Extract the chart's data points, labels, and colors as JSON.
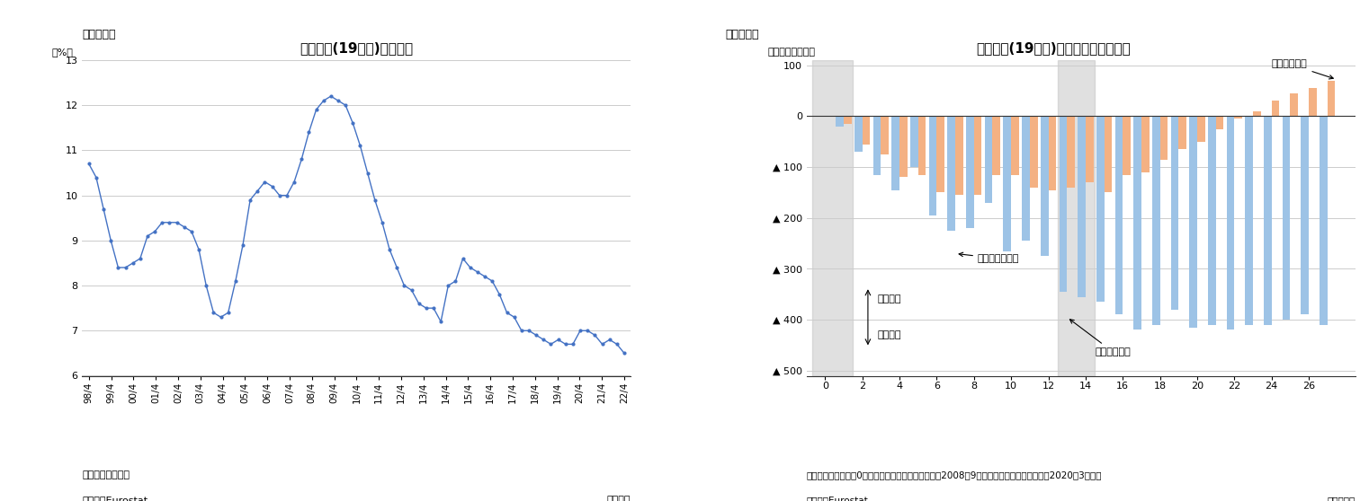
{
  "chart3_title": "ユーロ圏(19か国)の失業率",
  "chart3_ylabel": "（%）",
  "chart3_note1": "（注）季節調整値",
  "chart3_note2": "（資料）Eurostat",
  "chart3_footnote_right": "（月次）",
  "chart3_ylim": [
    6,
    13
  ],
  "chart3_yticks": [
    6,
    7,
    8,
    9,
    10,
    11,
    12,
    13
  ],
  "chart3_xticks": [
    "98/4",
    "99/4",
    "00/4",
    "01/4",
    "02/4",
    "03/4",
    "04/4",
    "05/4",
    "06/4",
    "07/4",
    "08/4",
    "09/4",
    "10/4",
    "11/4",
    "12/4",
    "13/4",
    "14/4",
    "15/4",
    "16/4",
    "17/4",
    "18/4",
    "19/4",
    "20/4",
    "21/4",
    "22/4"
  ],
  "chart3_data": [
    10.7,
    10.4,
    9.7,
    9.0,
    8.4,
    8.4,
    8.5,
    8.6,
    9.1,
    9.2,
    9.4,
    9.4,
    9.4,
    9.3,
    9.2,
    8.8,
    8.0,
    7.4,
    7.3,
    7.4,
    8.1,
    8.9,
    9.9,
    10.1,
    10.3,
    10.2,
    10.0,
    10.0,
    10.3,
    10.8,
    11.4,
    11.9,
    12.1,
    12.2,
    12.1,
    12.0,
    11.6,
    11.1,
    10.5,
    9.9,
    9.4,
    8.8,
    8.4,
    8.0,
    7.9,
    7.6,
    7.5,
    7.5,
    7.2,
    8.0,
    8.1,
    8.6,
    8.4,
    8.3,
    8.2,
    8.1,
    7.8,
    7.4,
    7.3,
    7.0,
    7.0,
    6.9,
    6.8,
    6.7,
    6.8,
    6.7,
    6.7,
    7.0,
    7.0,
    6.9,
    6.7,
    6.8,
    6.7,
    6.5
  ],
  "chart3_line_color": "#4472C4",
  "chart3_marker_size": 3,
  "chart4_title": "ユーロ圏(19か国)の累積失業者数変化",
  "chart4_ylabel": "（基準差、万人）",
  "chart4_note1": "（注）季節調整値、0は「リーマンブラザーズ破綻（2008年9月）」、「コロナショック（2020年3月）」",
  "chart4_note2": "（資料）Eurostat",
  "chart4_footnote_right": "（経過月）",
  "chart4_ylim": [
    -510,
    110
  ],
  "chart4_yticks": [
    100,
    0,
    -100,
    -200,
    -300,
    -400,
    -500
  ],
  "chart4_ytick_labels": [
    "100",
    "0",
    "▲ 100",
    "▲ 200",
    "▲ 300",
    "▲ 400",
    "▲ 500"
  ],
  "chart4_xtick_vals": [
    0,
    2,
    4,
    6,
    8,
    10,
    12,
    14,
    16,
    18,
    20,
    22,
    24,
    26
  ],
  "chart4_xtick_labels": [
    "0",
    "2",
    "4",
    "6",
    "8",
    "10",
    "12",
    "14",
    "16",
    "18",
    "20",
    "22",
    "24",
    "26"
  ],
  "chart4_blue_data": [
    0,
    -20,
    -70,
    -115,
    -145,
    -100,
    -195,
    -225,
    -220,
    -170,
    -265,
    -245,
    -275,
    -345,
    -355,
    -365,
    -390,
    -420,
    -410,
    -380,
    -415,
    -410,
    -420,
    -410,
    -410,
    -400,
    -390,
    -410
  ],
  "chart4_salmon_data": [
    0,
    -15,
    -55,
    -75,
    -120,
    -115,
    -150,
    -155,
    -155,
    -115,
    -115,
    -140,
    -145,
    -140,
    -130,
    -150,
    -115,
    -110,
    -85,
    -65,
    -50,
    -25,
    -5,
    10,
    30,
    45,
    55,
    70
  ],
  "chart4_blue_color": "#9DC3E6",
  "chart4_salmon_color": "#F4B183",
  "chart4_corona_label": "コロナ危機時",
  "chart4_sekai_label": "世界金融危機時",
  "chart4_ohshu_label": "欧州債務危機",
  "chart4_shitsugyo_gen": "失業者減",
  "chart4_shitsugyo_zo": "失業者増",
  "fig3_label": "（図表３）",
  "fig4_label": "（図表４）"
}
